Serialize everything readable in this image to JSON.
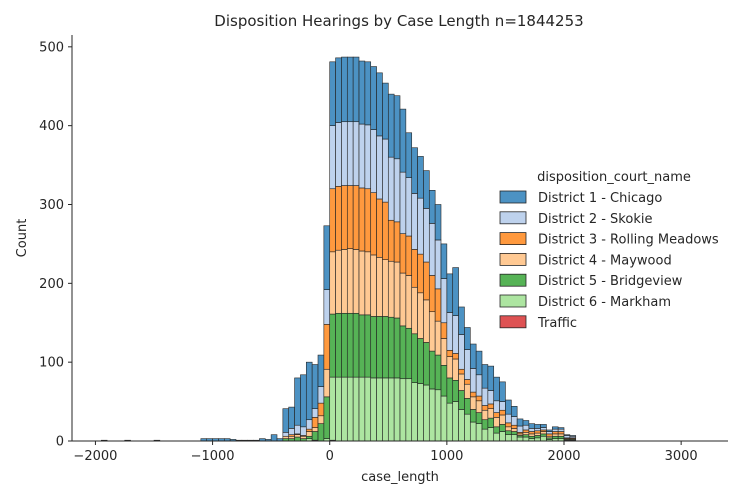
{
  "chart_data": {
    "type": "bar",
    "subtype": "stacked-histogram",
    "title": "Disposition Hearings by Case Length n=1844253",
    "xlabel": "case_length",
    "ylabel": "Count",
    "xlim": [
      -2200,
      3400
    ],
    "ylim": [
      0,
      515
    ],
    "xticks": [
      -2000,
      -1000,
      0,
      1000,
      2000,
      3000
    ],
    "yticks": [
      0,
      100,
      200,
      300,
      400,
      500
    ],
    "grid": false,
    "legend_title": "disposition_court_name",
    "legend_position": "right",
    "bin_width": 50,
    "bin_starts": [
      -1950,
      -1750,
      -1500,
      -1100,
      -1050,
      -1000,
      -950,
      -900,
      -850,
      -800,
      -750,
      -700,
      -650,
      -600,
      -550,
      -500,
      -450,
      -400,
      -350,
      -300,
      -250,
      -200,
      -150,
      -100,
      -50,
      0,
      50,
      100,
      150,
      200,
      250,
      300,
      350,
      400,
      450,
      500,
      550,
      600,
      650,
      700,
      750,
      800,
      850,
      900,
      950,
      1000,
      1050,
      1100,
      1150,
      1200,
      1250,
      1300,
      1350,
      1400,
      1450,
      1500,
      1550,
      1600,
      1650,
      1700,
      1750,
      1800,
      1850,
      1900,
      1950,
      2000,
      2050,
      2100,
      2150,
      2200,
      2250,
      2300,
      2350,
      2400,
      2450,
      2500,
      2550,
      2600,
      2650,
      2700,
      2750,
      2800,
      2850,
      2900,
      2950,
      3000,
      3050,
      3100,
      3150,
      3200,
      3250,
      3300,
      3350
    ],
    "series": [
      {
        "name": "Traffic",
        "color": "#d62728",
        "values": [
          0,
          0,
          0,
          0,
          0,
          0,
          0,
          0,
          0,
          0,
          0,
          0,
          0,
          0,
          0,
          0,
          0,
          0,
          0,
          0,
          0,
          0,
          0,
          0,
          0,
          1,
          0,
          0,
          0,
          0,
          0,
          0,
          0,
          0,
          0,
          0,
          0,
          0,
          0,
          0,
          0,
          0,
          0,
          0,
          0,
          0,
          0,
          0,
          0,
          0,
          0,
          0,
          0,
          0,
          0,
          0,
          0,
          0,
          0,
          0,
          0,
          0,
          0,
          0,
          0,
          0,
          0,
          0,
          0,
          0,
          0,
          0,
          0,
          0,
          0,
          0,
          0,
          0,
          0,
          0,
          0,
          0,
          0,
          0,
          0,
          0,
          0,
          0,
          0,
          0,
          0,
          0,
          0
        ]
      },
      {
        "name": "District 6 - Markham",
        "color": "#98df8a",
        "values": [
          0,
          0,
          0,
          0,
          0,
          0,
          0,
          0,
          0,
          0,
          0,
          0,
          0,
          0,
          0,
          0,
          0,
          0,
          0,
          0,
          0,
          3,
          1,
          0,
          3,
          80,
          81,
          81,
          81,
          81,
          81,
          81,
          80,
          80,
          80,
          80,
          80,
          79,
          79,
          74,
          73,
          71,
          66,
          65,
          57,
          48,
          50,
          40,
          34,
          24,
          22,
          15,
          17,
          10,
          12,
          8,
          8,
          5,
          5,
          3,
          4,
          6,
          2,
          3,
          3,
          1,
          1,
          0,
          0,
          0,
          0,
          0,
          0,
          0,
          0,
          0,
          0,
          0,
          0,
          0,
          0,
          0,
          0,
          0,
          0,
          0,
          0,
          0,
          0,
          0,
          0,
          0,
          0
        ]
      },
      {
        "name": "District 5 - Bridgeview",
        "color": "#2ca02c",
        "values": [
          0,
          0,
          0,
          0,
          0,
          0,
          0,
          0,
          0,
          0,
          0,
          0,
          0,
          0,
          0,
          0,
          0,
          3,
          3,
          5,
          3,
          3,
          11,
          22,
          53,
          80,
          81,
          81,
          81,
          81,
          79,
          79,
          78,
          78,
          78,
          77,
          76,
          67,
          64,
          62,
          57,
          54,
          48,
          44,
          39,
          32,
          27,
          24,
          20,
          16,
          14,
          12,
          12,
          8,
          9,
          5,
          4,
          2,
          3,
          3,
          3,
          3,
          2,
          3,
          3,
          1,
          1,
          0,
          0,
          0,
          0,
          0,
          0,
          0,
          0,
          0,
          0,
          0,
          0,
          0,
          0,
          0,
          0,
          0,
          0,
          0,
          0,
          0,
          0,
          0,
          0,
          0,
          0
        ]
      },
      {
        "name": "District 4 - Maywood",
        "color": "#ffbb78",
        "values": [
          0,
          0,
          0,
          0,
          0,
          0,
          0,
          0,
          0,
          0,
          0,
          0,
          0,
          0,
          0,
          0,
          0,
          3,
          3,
          3,
          3,
          6,
          5,
          10,
          35,
          79,
          80,
          81,
          82,
          81,
          81,
          80,
          78,
          75,
          72,
          71,
          71,
          67,
          67,
          59,
          58,
          54,
          50,
          43,
          34,
          27,
          27,
          21,
          18,
          16,
          15,
          12,
          12,
          12,
          12,
          5,
          4,
          2,
          3,
          3,
          3,
          3,
          2,
          3,
          3,
          1,
          1,
          0,
          0,
          0,
          0,
          0,
          0,
          0,
          0,
          0,
          0,
          0,
          0,
          0,
          0,
          0,
          0,
          0,
          0,
          0,
          0,
          0,
          0,
          0,
          0,
          0,
          0
        ]
      },
      {
        "name": "District 3 - Rolling Meadows",
        "color": "#ff7f0e",
        "values": [
          0,
          0,
          0,
          0,
          0,
          0,
          0,
          0,
          0,
          0,
          0,
          0,
          0,
          0,
          0,
          0,
          0,
          0,
          2,
          1,
          1,
          3,
          13,
          16,
          57,
          80,
          81,
          81,
          80,
          81,
          80,
          80,
          79,
          74,
          73,
          52,
          51,
          50,
          50,
          48,
          49,
          48,
          46,
          41,
          20,
          8,
          7,
          6,
          6,
          6,
          6,
          6,
          6,
          6,
          6,
          5,
          4,
          2,
          3,
          3,
          3,
          2,
          3,
          3,
          3,
          1,
          1,
          0,
          0,
          0,
          0,
          0,
          0,
          0,
          0,
          0,
          0,
          0,
          0,
          0,
          0,
          0,
          0,
          0,
          0,
          0,
          0,
          0,
          0,
          0,
          0,
          0,
          0
        ]
      },
      {
        "name": "District 2 - Skokie",
        "color": "#aec7e8",
        "values": [
          0,
          0,
          0,
          0,
          0,
          0,
          0,
          0,
          0,
          0,
          0,
          0,
          0,
          0,
          0,
          0,
          0,
          5,
          8,
          11,
          11,
          12,
          11,
          21,
          44,
          80,
          81,
          81,
          81,
          81,
          81,
          81,
          80,
          80,
          80,
          80,
          80,
          78,
          74,
          71,
          71,
          68,
          66,
          62,
          56,
          48,
          48,
          44,
          38,
          30,
          27,
          22,
          17,
          15,
          11,
          11,
          11,
          8,
          6,
          4,
          3,
          3,
          3,
          3,
          3,
          3,
          2,
          0,
          0,
          0,
          0,
          0,
          0,
          0,
          0,
          0,
          0,
          0,
          0,
          0,
          0,
          0,
          0,
          0,
          0,
          0,
          0,
          0,
          0,
          0,
          0,
          0,
          0
        ]
      },
      {
        "name": "District 1 - Chicago",
        "color": "#1f77b4",
        "values": [
          1,
          1,
          1,
          3,
          3,
          3,
          3,
          3,
          2,
          1,
          1,
          1,
          1,
          3,
          2,
          8,
          3,
          30,
          27,
          60,
          66,
          73,
          56,
          40,
          81,
          81,
          82,
          82,
          82,
          82,
          80,
          80,
          80,
          80,
          71,
          80,
          80,
          80,
          57,
          58,
          53,
          48,
          42,
          45,
          44,
          49,
          61,
          35,
          28,
          31,
          30,
          30,
          31,
          30,
          25,
          18,
          13,
          9,
          6,
          6,
          5,
          4,
          2,
          3,
          2,
          1,
          1,
          0,
          0,
          0,
          0,
          0,
          0,
          0,
          0,
          0,
          0,
          0,
          0,
          0,
          0,
          0,
          0,
          0,
          0,
          0,
          0,
          0,
          0,
          0,
          0,
          0,
          0
        ]
      }
    ]
  }
}
